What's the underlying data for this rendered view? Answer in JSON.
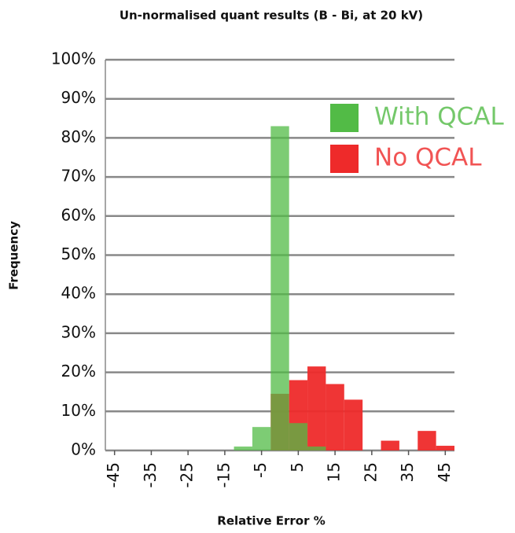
{
  "chart_data": {
    "type": "histogram",
    "title": "Un-normalised quant results (B - Bi, at 20 kV)",
    "x_label": "Relative Error %",
    "y_label": "Frequency",
    "bins": [
      -47.5,
      -42.5,
      -37.5,
      -32.5,
      -27.5,
      -22.5,
      -17.5,
      -12.5,
      -7.5,
      -2.5,
      2.5,
      7.5,
      12.5,
      17.5,
      22.5,
      27.5,
      32.5,
      37.5,
      42.5,
      47.5
    ],
    "series": [
      {
        "name": "No QCAL",
        "color": "#ee2a2a",
        "values": [
          0,
          0,
          0,
          0,
          0,
          0,
          0,
          0,
          0,
          14.5,
          18,
          21.5,
          17,
          13,
          0,
          2.5,
          0,
          5,
          1.2
        ]
      },
      {
        "name": "With QCAL",
        "color": "#52bb46",
        "values": [
          0,
          0,
          0,
          0,
          0,
          0,
          0,
          1,
          6,
          83,
          7,
          1,
          0,
          0,
          0,
          0,
          0,
          0,
          0
        ]
      }
    ],
    "xlim": [
      -47.5,
      47.5
    ],
    "ylim": [
      0,
      100
    ],
    "xticks": [
      -45,
      -35,
      -25,
      -15,
      -5,
      5,
      15,
      25,
      35,
      45
    ],
    "yticks": [
      {
        "value": 0,
        "label": "0%"
      },
      {
        "value": 10,
        "label": "10%"
      },
      {
        "value": 20,
        "label": "20%"
      },
      {
        "value": 30,
        "label": "30%"
      },
      {
        "value": 40,
        "label": "40%"
      },
      {
        "value": 50,
        "label": "50%"
      },
      {
        "value": 60,
        "label": "60%"
      },
      {
        "value": 70,
        "label": "70%"
      },
      {
        "value": 80,
        "label": "80%"
      },
      {
        "value": 90,
        "label": "90%"
      },
      {
        "value": 100,
        "label": "100%"
      }
    ],
    "grid": true,
    "legend": "upper right"
  }
}
